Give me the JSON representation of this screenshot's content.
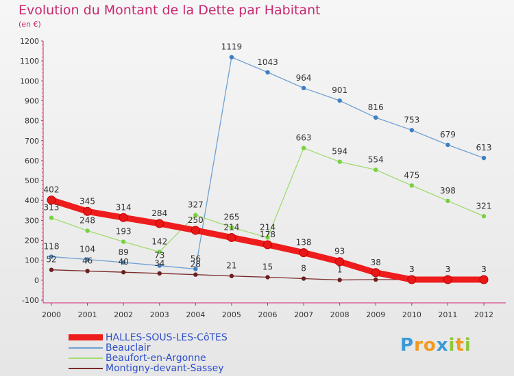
{
  "chart_data": {
    "type": "line",
    "title": "Evolution du Montant de la Dette par Habitant",
    "unit_label": "(en €)",
    "x": [
      "2000",
      "2001",
      "2002",
      "2003",
      "2004",
      "2005",
      "2006",
      "2007",
      "2008",
      "2009",
      "2010",
      "2011",
      "2012"
    ],
    "ylim": [
      -100,
      1200
    ],
    "yticks": [
      "-100",
      "0",
      "100",
      "200",
      "300",
      "400",
      "500",
      "600",
      "700",
      "800",
      "900",
      "1000",
      "1100",
      "1200"
    ],
    "grid": false,
    "legend_position": "bottom-left",
    "series": [
      {
        "name": "Beauclair",
        "color": "#6ea0d2",
        "marker": "#3d7fc1",
        "values": [
          118,
          104,
          89,
          73,
          56,
          1119,
          1043,
          964,
          901,
          816,
          753,
          679,
          613
        ],
        "labels": [
          "118",
          "104",
          "89",
          "73",
          "56",
          "1119",
          "1043",
          "964",
          "901",
          "816",
          "753",
          "679",
          "613"
        ]
      },
      {
        "name": "Beaufort-en-Argonne",
        "color": "#9fdc6e",
        "marker": "#7ad043",
        "values": [
          313,
          248,
          193,
          142,
          327,
          265,
          214,
          663,
          594,
          554,
          475,
          398,
          321
        ],
        "labels": [
          "313",
          "248",
          "193",
          "142",
          "327",
          "265",
          "214",
          "663",
          "594",
          "554",
          "475",
          "398",
          "321"
        ]
      },
      {
        "name": "Montigny-devant-Sassey",
        "color": "#7a2a2a",
        "marker": "#6b1f1f",
        "values": [
          52,
          46,
          40,
          34,
          28,
          21,
          15,
          8,
          1,
          3,
          3,
          3,
          3
        ],
        "labels": [
          "52",
          "46",
          "40",
          "34",
          "28",
          "21",
          "15",
          "8",
          "1",
          "",
          "3",
          "3",
          "3"
        ]
      },
      {
        "name": "HALLES-SOUS-LES-CôTES",
        "color": "#ee1c1c",
        "marker": "#e81818",
        "values": [
          402,
          345,
          314,
          284,
          250,
          214,
          178,
          138,
          93,
          38,
          3,
          3,
          3
        ],
        "labels": [
          "402",
          "345",
          "314",
          "284",
          "250",
          "214",
          "178",
          "138",
          "93",
          "38",
          "3",
          "3",
          "3"
        ]
      }
    ]
  },
  "legend": [
    {
      "name": "HALLES-SOUS-LES-CôTES",
      "color": "#ee1c1c"
    },
    {
      "name": "Beauclair",
      "color": "#6ea0d2"
    },
    {
      "name": "Beaufort-en-Argonne",
      "color": "#9fdc6e"
    },
    {
      "name": "Montigny-devant-Sassey",
      "color": "#7a2a2a"
    }
  ],
  "logo": {
    "letters": [
      "P",
      "r",
      "o",
      "x",
      "i",
      "t",
      "i"
    ],
    "colors": [
      "#3a9ad9",
      "#f29a1e",
      "#f29a1e",
      "#3a9ad9",
      "#8dc63f",
      "#f29a1e",
      "#8dc63f"
    ]
  }
}
